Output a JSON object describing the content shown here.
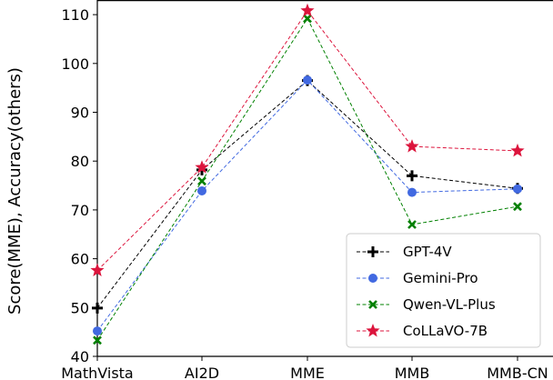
{
  "chart_data": {
    "type": "line",
    "categories": [
      "MathVista",
      "AI2D",
      "MME",
      "MMB",
      "MMB-CN"
    ],
    "ylabel": "Score(MME),  Accuracy(others)",
    "xlabel": "",
    "ylim": [
      40,
      113
    ],
    "yticks": [
      40,
      50,
      60,
      70,
      80,
      90,
      100,
      110
    ],
    "grid": false,
    "legend_position": "bottom-right",
    "series": [
      {
        "name": "GPT-4V",
        "values": [
          49.9,
          78.2,
          96.5,
          77.0,
          74.4
        ],
        "color": "#000000",
        "marker": "plus"
      },
      {
        "name": "Gemini-Pro",
        "values": [
          45.2,
          73.9,
          96.6,
          73.6,
          74.3
        ],
        "color": "#4169E1",
        "marker": "circle"
      },
      {
        "name": "Qwen-VL-Plus",
        "values": [
          43.3,
          75.9,
          109.2,
          67.0,
          70.7
        ],
        "color": "#008000",
        "marker": "x"
      },
      {
        "name": "CoLLaVO-7B",
        "values": [
          57.6,
          78.7,
          110.8,
          83.0,
          82.1
        ],
        "color": "#DC143C",
        "marker": "star"
      }
    ]
  }
}
